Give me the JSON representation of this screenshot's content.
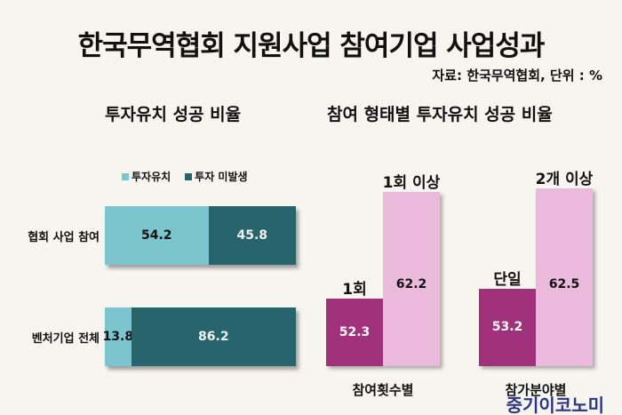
{
  "title": "한국무역협회 지원사업 참여기업 사업성과",
  "source": "자료: 한국무역협회, 단위 : %",
  "logo": "중기이코노미",
  "colors": {
    "invest": "#7cc5cf",
    "no_invest": "#28646c",
    "low": "#a2317c",
    "high": "#eab9dc"
  },
  "chart_data": [
    {
      "type": "bar",
      "orientation": "horizontal-stacked",
      "title": "투자유치 성공 비율",
      "categories": [
        "협회 사업 참여",
        "벤처기업 전체"
      ],
      "series": [
        {
          "name": "투자유치",
          "values": [
            54.2,
            13.8
          ]
        },
        {
          "name": "투자 미발생",
          "values": [
            45.8,
            86.2
          ]
        }
      ],
      "xlim": [
        0,
        100
      ],
      "legend": "top"
    },
    {
      "type": "bar",
      "title": "참여 형태별 투자유치 성공 비율",
      "ylim": [
        46,
        64
      ],
      "groups": [
        {
          "category": "참여횟수별",
          "bars": [
            {
              "label": "1회",
              "value": 52.3
            },
            {
              "label": "1회 이상",
              "value": 62.2
            }
          ]
        },
        {
          "category": "참가분야별",
          "bars": [
            {
              "label": "단일",
              "value": 53.2
            },
            {
              "label": "2개 이상",
              "value": 62.5
            }
          ]
        }
      ]
    }
  ]
}
